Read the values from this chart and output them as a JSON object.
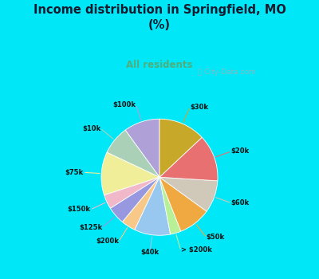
{
  "title": "Income distribution in Springfield, MO\n(%)",
  "subtitle": "All residents",
  "title_color": "#1a1a2e",
  "subtitle_color": "#4caf7d",
  "bg_cyan": "#00e8f8",
  "bg_chart": "#d8f0e4",
  "watermark": "ⓘ City-Data.com",
  "labels": [
    "$100k",
    "$10k",
    "$75k",
    "$150k",
    "$125k",
    "$200k",
    "$40k",
    "> $200k",
    "$50k",
    "$60k",
    "$20k",
    "$30k"
  ],
  "values": [
    10,
    8,
    12,
    4,
    5,
    4,
    10,
    3,
    9,
    9,
    13,
    13
  ],
  "colors": [
    "#b0a0d8",
    "#aad0b8",
    "#f0ee98",
    "#f0b8c8",
    "#9898e0",
    "#f8c888",
    "#98c8f0",
    "#b8f098",
    "#f0a840",
    "#d0c8b8",
    "#e87070",
    "#c8a828"
  ],
  "start_angle": 90
}
